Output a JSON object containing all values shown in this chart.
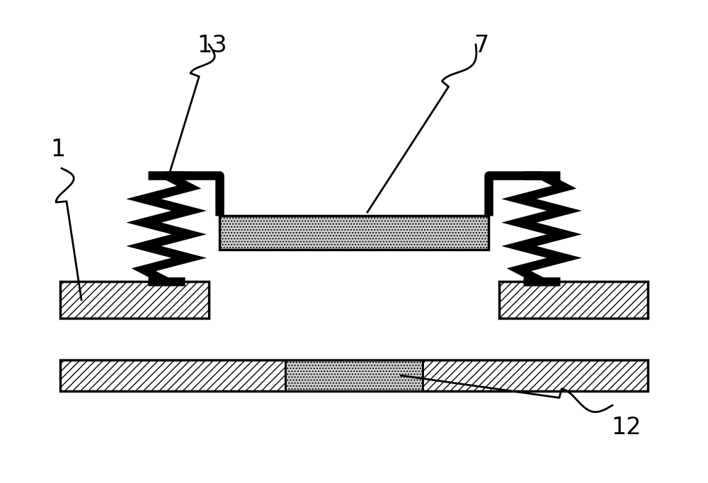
{
  "bg_color": "#ffffff",
  "line_color": "#000000",
  "figsize": [
    10.0,
    6.83
  ],
  "dpi": 100,
  "label_1": "1",
  "label_7": "7",
  "label_12": "12",
  "label_13": "13"
}
